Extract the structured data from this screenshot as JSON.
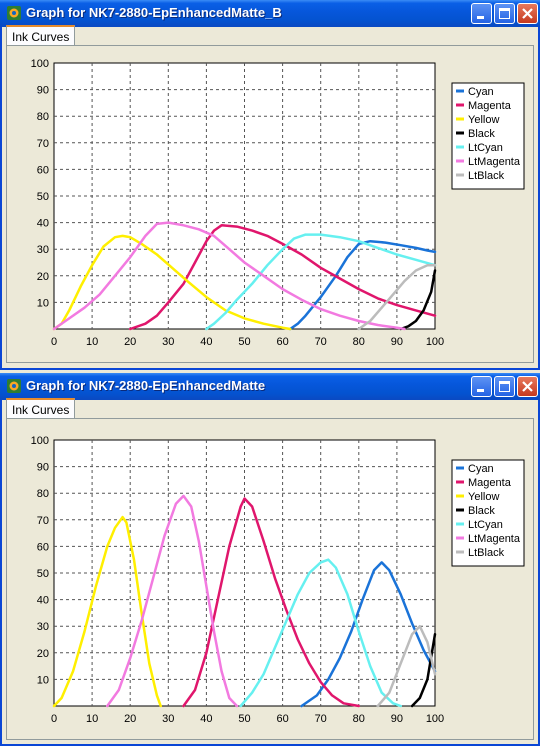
{
  "windows": [
    {
      "title": "Graph for NK7-2880-EpEnhancedMatte_B",
      "tab_label": "Ink Curves",
      "chart_data": {
        "type": "line",
        "xlim": [
          0,
          100
        ],
        "ylim": [
          0,
          100
        ],
        "x_ticks": [
          "0",
          "10",
          "20",
          "30",
          "40",
          "50",
          "60",
          "70",
          "80",
          "90",
          "100"
        ],
        "y_ticks": [
          "10",
          "20",
          "30",
          "40",
          "50",
          "60",
          "70",
          "80",
          "90",
          "100"
        ],
        "grid": true,
        "legend_position": "right",
        "series": [
          {
            "name": "Cyan",
            "color": "#1a73d8",
            "points": [
              [
                62,
                0
              ],
              [
                64,
                2
              ],
              [
                66,
                5
              ],
              [
                70,
                12
              ],
              [
                74,
                20
              ],
              [
                77,
                27
              ],
              [
                80,
                32
              ],
              [
                83,
                33
              ],
              [
                87,
                32.5
              ],
              [
                91,
                31.5
              ],
              [
                95,
                30.5
              ],
              [
                98,
                29.5
              ],
              [
                100,
                29
              ]
            ]
          },
          {
            "name": "Magenta",
            "color": "#e0166c",
            "points": [
              [
                20,
                0
              ],
              [
                24,
                2
              ],
              [
                27,
                5
              ],
              [
                30,
                10
              ],
              [
                34,
                17
              ],
              [
                37,
                25
              ],
              [
                40,
                33
              ],
              [
                42,
                37
              ],
              [
                44,
                39
              ],
              [
                48,
                38.5
              ],
              [
                52,
                37
              ],
              [
                56,
                35
              ],
              [
                60,
                32
              ],
              [
                65,
                28
              ],
              [
                70,
                23
              ],
              [
                75,
                19
              ],
              [
                80,
                15
              ],
              [
                85,
                11.5
              ],
              [
                90,
                9
              ],
              [
                95,
                7
              ],
              [
                100,
                5
              ]
            ]
          },
          {
            "name": "Yellow",
            "color": "#ffef00",
            "points": [
              [
                0,
                0
              ],
              [
                2,
                2
              ],
              [
                4,
                7
              ],
              [
                7,
                16
              ],
              [
                10,
                24
              ],
              [
                13,
                31
              ],
              [
                16,
                34.5
              ],
              [
                18,
                35
              ],
              [
                20,
                34.5
              ],
              [
                23,
                32
              ],
              [
                27,
                28
              ],
              [
                31,
                23
              ],
              [
                35,
                18
              ],
              [
                40,
                12
              ],
              [
                45,
                7
              ],
              [
                50,
                4
              ],
              [
                55,
                2
              ],
              [
                60,
                0.5
              ],
              [
                62,
                0
              ]
            ]
          },
          {
            "name": "Black",
            "color": "#000000",
            "points": [
              [
                91,
                0
              ],
              [
                93,
                1
              ],
              [
                95,
                3
              ],
              [
                97,
                7
              ],
              [
                99,
                14
              ],
              [
                100,
                22
              ]
            ]
          },
          {
            "name": "LtCyan",
            "color": "#66f0f0",
            "points": [
              [
                40,
                0
              ],
              [
                42,
                2
              ],
              [
                45,
                6
              ],
              [
                48,
                11
              ],
              [
                52,
                17
              ],
              [
                56,
                24
              ],
              [
                60,
                30
              ],
              [
                63,
                34
              ],
              [
                66,
                35.5
              ],
              [
                70,
                35.5
              ],
              [
                75,
                34.5
              ],
              [
                80,
                33
              ],
              [
                85,
                30.5
              ],
              [
                90,
                28
              ],
              [
                95,
                26
              ],
              [
                100,
                24
              ]
            ]
          },
          {
            "name": "LtMagenta",
            "color": "#f27ae0",
            "points": [
              [
                0,
                0
              ],
              [
                4,
                4
              ],
              [
                8,
                8
              ],
              [
                12,
                13
              ],
              [
                16,
                20
              ],
              [
                20,
                27
              ],
              [
                24,
                35
              ],
              [
                27,
                39.5
              ],
              [
                30,
                40
              ],
              [
                34,
                39
              ],
              [
                38,
                37.5
              ],
              [
                42,
                35
              ],
              [
                46,
                30
              ],
              [
                50,
                25
              ],
              [
                55,
                20
              ],
              [
                60,
                15
              ],
              [
                65,
                11
              ],
              [
                70,
                7.5
              ],
              [
                75,
                5
              ],
              [
                80,
                3
              ],
              [
                85,
                1.5
              ],
              [
                90,
                0.5
              ],
              [
                92,
                0
              ]
            ]
          },
          {
            "name": "LtBlack",
            "color": "#bcbcbc",
            "points": [
              [
                80,
                0
              ],
              [
                83,
                3
              ],
              [
                86,
                8
              ],
              [
                89,
                13
              ],
              [
                92,
                18
              ],
              [
                95,
                22
              ],
              [
                98,
                24
              ],
              [
                100,
                24
              ]
            ]
          }
        ]
      }
    },
    {
      "title": "Graph for NK7-2880-EpEnhancedMatte",
      "tab_label": "Ink Curves",
      "chart_data": {
        "type": "line",
        "xlim": [
          0,
          100
        ],
        "ylim": [
          0,
          100
        ],
        "x_ticks": [
          "0",
          "10",
          "20",
          "30",
          "40",
          "50",
          "60",
          "70",
          "80",
          "90",
          "100"
        ],
        "y_ticks": [
          "10",
          "20",
          "30",
          "40",
          "50",
          "60",
          "70",
          "80",
          "90",
          "100"
        ],
        "grid": true,
        "legend_position": "right",
        "series": [
          {
            "name": "Cyan",
            "color": "#1a73d8",
            "points": [
              [
                65,
                0
              ],
              [
                69,
                4
              ],
              [
                72,
                10
              ],
              [
                75,
                18
              ],
              [
                78,
                28
              ],
              [
                81,
                40
              ],
              [
                84,
                51
              ],
              [
                86,
                54
              ],
              [
                88,
                51
              ],
              [
                91,
                42
              ],
              [
                94,
                31
              ],
              [
                97,
                21
              ],
              [
                100,
                13
              ]
            ]
          },
          {
            "name": "Magenta",
            "color": "#e0166c",
            "points": [
              [
                34,
                0
              ],
              [
                37,
                6
              ],
              [
                40,
                20
              ],
              [
                43,
                40
              ],
              [
                46,
                60
              ],
              [
                49,
                75
              ],
              [
                50,
                78
              ],
              [
                52,
                75
              ],
              [
                55,
                62
              ],
              [
                58,
                48
              ],
              [
                61,
                36
              ],
              [
                64,
                25
              ],
              [
                67,
                16
              ],
              [
                70,
                9
              ],
              [
                73,
                4
              ],
              [
                76,
                1
              ],
              [
                80,
                0
              ]
            ]
          },
          {
            "name": "Yellow",
            "color": "#ffef00",
            "points": [
              [
                0,
                0
              ],
              [
                2,
                3
              ],
              [
                5,
                13
              ],
              [
                8,
                28
              ],
              [
                11,
                45
              ],
              [
                14,
                60
              ],
              [
                16,
                67
              ],
              [
                18,
                71
              ],
              [
                19,
                69
              ],
              [
                21,
                55
              ],
              [
                23,
                35
              ],
              [
                25,
                16
              ],
              [
                27,
                4
              ],
              [
                28,
                0
              ]
            ]
          },
          {
            "name": "Black",
            "color": "#000000",
            "points": [
              [
                94,
                0
              ],
              [
                96,
                3
              ],
              [
                98,
                10
              ],
              [
                100,
                27
              ]
            ]
          },
          {
            "name": "LtCyan",
            "color": "#66f0f0",
            "points": [
              [
                49,
                0
              ],
              [
                52,
                5
              ],
              [
                55,
                12
              ],
              [
                58,
                22
              ],
              [
                61,
                32
              ],
              [
                64,
                42
              ],
              [
                67,
                50
              ],
              [
                70,
                54
              ],
              [
                72,
                55
              ],
              [
                74,
                52
              ],
              [
                77,
                42
              ],
              [
                80,
                28
              ],
              [
                83,
                15
              ],
              [
                86,
                5
              ],
              [
                89,
                1
              ],
              [
                91,
                0
              ]
            ]
          },
          {
            "name": "LtMagenta",
            "color": "#f27ae0",
            "points": [
              [
                14,
                0
              ],
              [
                17,
                6
              ],
              [
                20,
                18
              ],
              [
                23,
                32
              ],
              [
                26,
                48
              ],
              [
                29,
                64
              ],
              [
                32,
                76
              ],
              [
                34,
                79
              ],
              [
                36,
                75
              ],
              [
                38,
                62
              ],
              [
                40,
                45
              ],
              [
                42,
                28
              ],
              [
                44,
                13
              ],
              [
                46,
                3
              ],
              [
                48,
                0
              ]
            ]
          },
          {
            "name": "LtBlack",
            "color": "#bcbcbc",
            "points": [
              [
                85,
                0
              ],
              [
                88,
                5
              ],
              [
                91,
                16
              ],
              [
                94,
                27
              ],
              [
                96,
                30
              ],
              [
                98,
                24
              ],
              [
                100,
                12
              ]
            ]
          }
        ]
      }
    }
  ]
}
